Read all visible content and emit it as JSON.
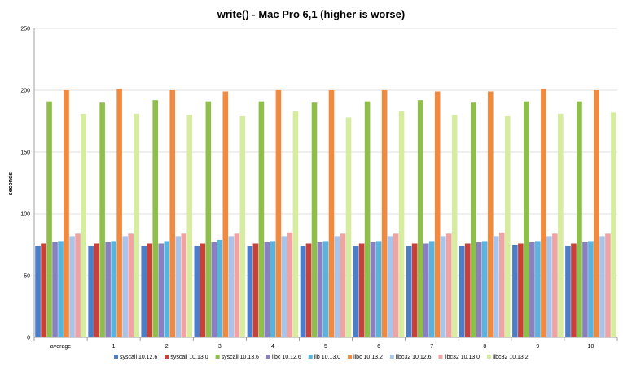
{
  "chart_data": {
    "type": "bar",
    "title": "write() - Mac Pro 6,1 (higher is worse)",
    "xlabel": "",
    "ylabel": "seconds",
    "ylim": [
      0,
      250
    ],
    "yticks": [
      0,
      50,
      100,
      150,
      200,
      250
    ],
    "grid": true,
    "legend_position": "bottom",
    "categories": [
      "average",
      "1",
      "2",
      "3",
      "4",
      "5",
      "6",
      "7",
      "8",
      "9",
      "10"
    ],
    "series": [
      {
        "name": "syscall 10.12.6",
        "color": "#4a7ec8",
        "values": [
          74,
          74,
          74,
          74,
          74,
          74,
          74,
          74,
          74,
          75,
          74
        ]
      },
      {
        "name": "syscall 10.13.0",
        "color": "#c9403a",
        "values": [
          76,
          76,
          76,
          76,
          76,
          76,
          76,
          76,
          76,
          76,
          76
        ]
      },
      {
        "name": "syscall 10.13.6",
        "color": "#8ebf4a",
        "values": [
          191,
          190,
          192,
          191,
          191,
          190,
          191,
          192,
          190,
          191,
          191
        ]
      },
      {
        "name": "libc 10.12.6",
        "color": "#8a7fc0",
        "values": [
          77,
          77,
          76,
          77,
          77,
          77,
          77,
          76,
          77,
          77,
          77
        ]
      },
      {
        "name": "lib 10.13.0",
        "color": "#5ab3dc",
        "values": [
          78,
          78,
          78,
          79,
          78,
          78,
          78,
          78,
          78,
          78,
          78
        ]
      },
      {
        "name": "libc 10.13.2",
        "color": "#f18a3e",
        "values": [
          200,
          201,
          200,
          199,
          200,
          200,
          200,
          199,
          199,
          201,
          200
        ]
      },
      {
        "name": "libc32 10.12.6",
        "color": "#a9c4ea",
        "values": [
          82,
          82,
          82,
          82,
          82,
          82,
          82,
          82,
          82,
          82,
          82
        ]
      },
      {
        "name": "libc32 10.13.0",
        "color": "#efa3a3",
        "values": [
          84,
          84,
          84,
          84,
          85,
          84,
          84,
          84,
          85,
          84,
          84
        ]
      },
      {
        "name": "libc32 10.13.2",
        "color": "#d6ec9e",
        "values": [
          181,
          181,
          180,
          179,
          183,
          178,
          183,
          180,
          179,
          181,
          182
        ]
      }
    ]
  }
}
